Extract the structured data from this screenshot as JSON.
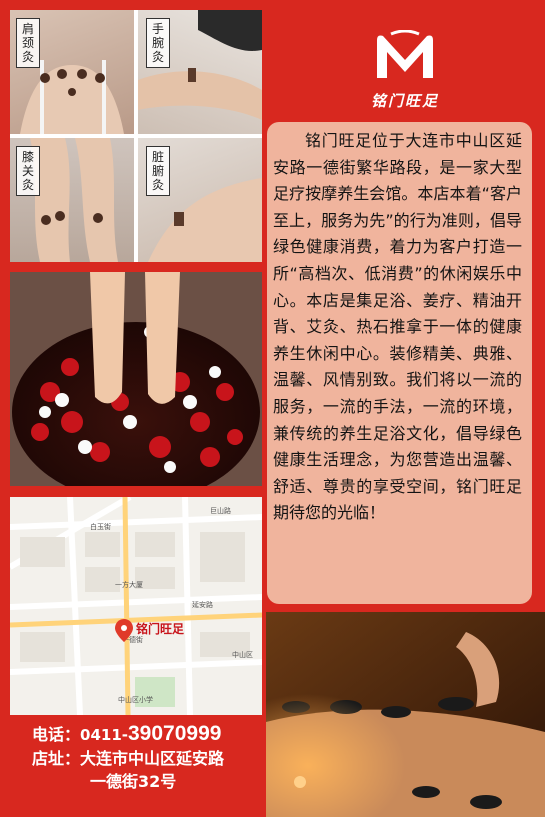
{
  "brand": {
    "name": "铭门旺足",
    "logo_letter": "M"
  },
  "moxibustion": [
    {
      "label": "肩颈灸"
    },
    {
      "label": "手腕灸"
    },
    {
      "label": "膝关灸"
    },
    {
      "label": "脏腑灸"
    }
  ],
  "intro": {
    "text": "铭门旺足位于大连市中山区延安路一德街繁华路段，是一家大型足疗按摩养生会馆。本店本着“客户至上，服务为先”的行为准则，倡导绿色健康消费，着力为客户打造一所“高档次、低消费”的休闲娱乐中心。本店是集足浴、姜疗、精油开背、艾灸、热石推拿于一体的健康养生休闲中心。装修精美、典雅、温馨、风情别致。我们将以一流的服务，一流的手法，一流的环境，兼传统的养生足浴文化，倡导绿色健康生活理念，为您营造出温馨、舒适、尊贵的享受空间，铭门旺足期待您的光临！"
  },
  "map": {
    "pin_label": "铭门旺足",
    "labels": [
      "巨山路",
      "白玉街",
      "一方大厦",
      "延安路",
      "一德街",
      "中山区",
      "中山区小学"
    ]
  },
  "contact": {
    "tel_label": "电话：",
    "tel_prefix": "0411-",
    "tel_number": "39070999",
    "addr_label": "店址：",
    "addr_line1": "大连市中山区延安路",
    "addr_line2": "一德街32号"
  },
  "colors": {
    "background": "#d8281f",
    "intro_box": "#f0b49d",
    "pin": "#e03a2a"
  }
}
